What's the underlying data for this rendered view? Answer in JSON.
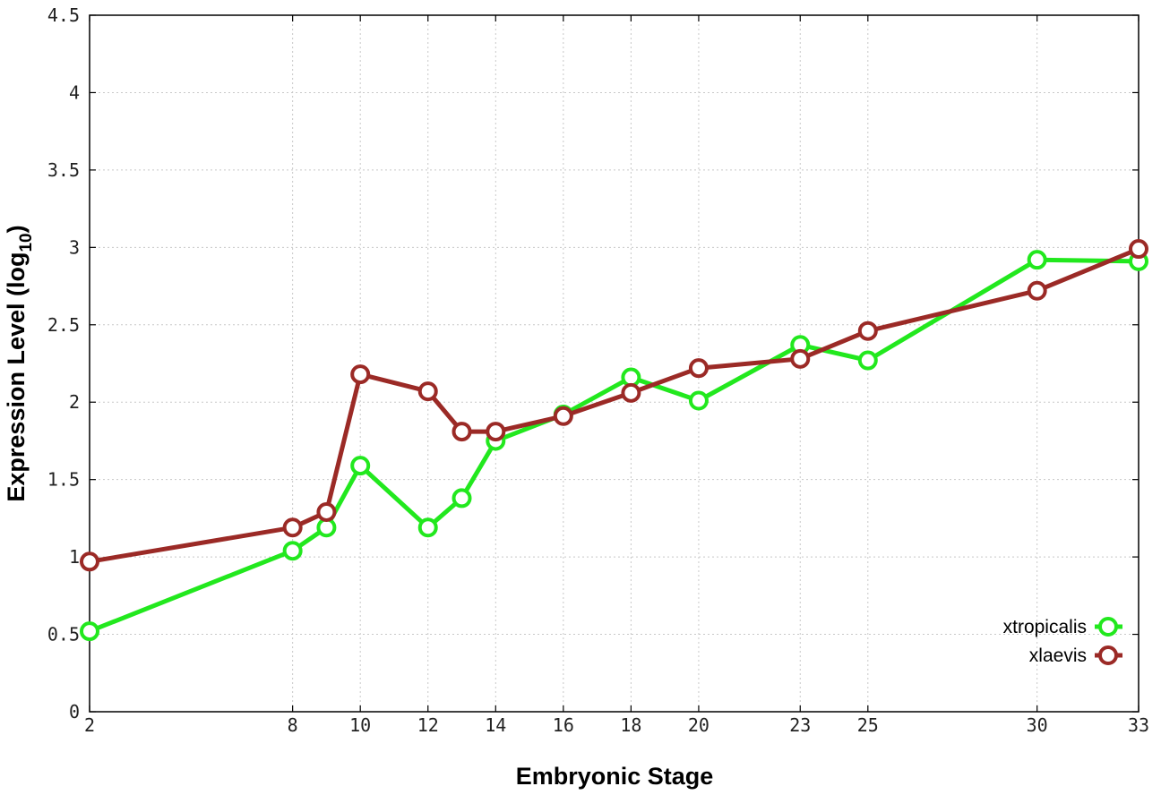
{
  "chart_data": {
    "type": "line",
    "title": "",
    "xlabel": "Embryonic Stage",
    "ylabel_main": "Expression Level (log",
    "ylabel_sub": "10",
    "ylabel_close": ")",
    "xlim": [
      2,
      33
    ],
    "ylim": [
      0,
      4.5
    ],
    "x_ticks": [
      2,
      8,
      10,
      12,
      14,
      16,
      18,
      20,
      23,
      25,
      30,
      33
    ],
    "y_ticks": [
      0,
      0.5,
      1,
      1.5,
      2,
      2.5,
      3,
      3.5,
      4,
      4.5
    ],
    "x_tick_labels": [
      "2",
      "8",
      "10",
      "12",
      "14",
      "16",
      "18",
      "20",
      "23",
      "25",
      "30",
      "33"
    ],
    "y_tick_labels": [
      "0",
      "0.5",
      "1",
      "1.5",
      "2",
      "2.5",
      "3",
      "3.5",
      "4",
      "4.5"
    ],
    "grid": true,
    "legend_position": "bottom-right",
    "series": [
      {
        "name": "xtropicalis",
        "color": "#22e81e",
        "marker": "open-circle",
        "x": [
          2,
          8,
          9,
          10,
          12,
          13,
          14,
          16,
          18,
          20,
          23,
          25,
          30,
          33
        ],
        "y": [
          0.52,
          1.04,
          1.19,
          1.59,
          1.19,
          1.38,
          1.75,
          1.92,
          2.16,
          2.01,
          2.37,
          2.27,
          2.92,
          2.91
        ]
      },
      {
        "name": "xlaevis",
        "color": "#9b2a26",
        "marker": "open-circle",
        "x": [
          2,
          8,
          9,
          10,
          12,
          13,
          14,
          16,
          18,
          20,
          23,
          25,
          30,
          33
        ],
        "y": [
          0.97,
          1.19,
          1.29,
          2.18,
          2.07,
          1.81,
          1.81,
          1.91,
          2.06,
          2.22,
          2.28,
          2.46,
          2.72,
          2.99
        ]
      }
    ]
  }
}
